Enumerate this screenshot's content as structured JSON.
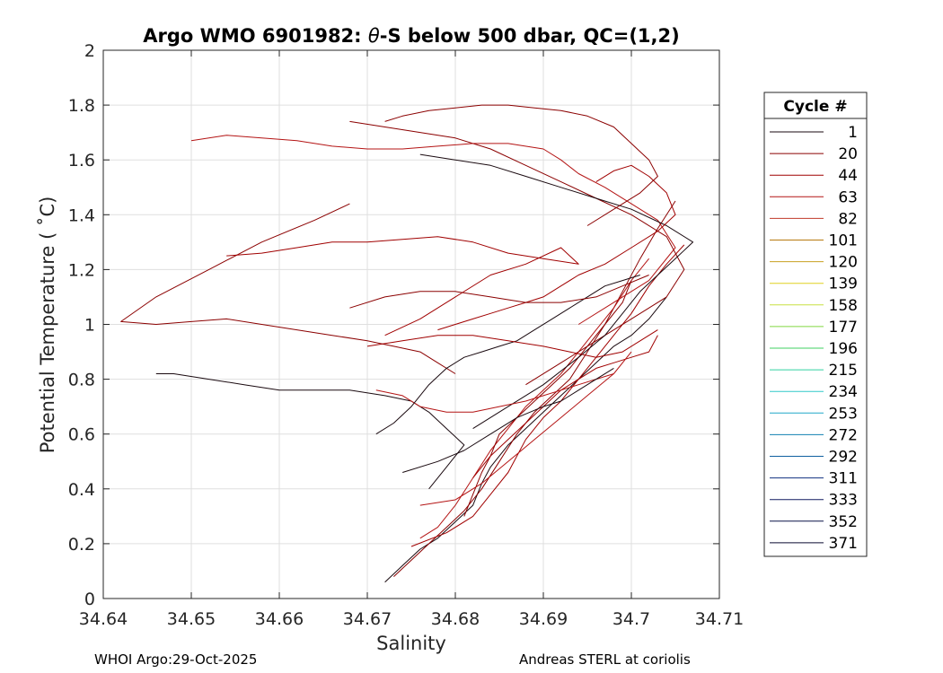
{
  "chart_data": {
    "type": "line",
    "title": "Argo WMO 6901982: θ-S below 500 dbar,  QC=(1,2)",
    "title_parts": {
      "lead": "Argo WMO 6901982: ",
      "symbol": "θ",
      "rest": "-S below 500 dbar,  QC=(1,2)"
    },
    "xlabel": "Salinity",
    "ylabel": "Potential Temperature ( ˚C)",
    "xlim": [
      34.64,
      34.71
    ],
    "ylim": [
      0,
      2
    ],
    "x_ticks": [
      34.64,
      34.65,
      34.66,
      34.67,
      34.68,
      34.69,
      34.7,
      34.71
    ],
    "x_tick_labels": [
      "34.64",
      "34.65",
      "34.66",
      "34.67",
      "34.68",
      "34.69",
      "34.7",
      "34.71"
    ],
    "y_ticks": [
      0,
      0.2,
      0.4,
      0.6,
      0.8,
      1,
      1.2,
      1.4,
      1.6,
      1.8,
      2
    ],
    "y_tick_labels": [
      "0",
      "0.2",
      "0.4",
      "0.6",
      "0.8",
      "1",
      "1.2",
      "1.4",
      "1.6",
      "1.8",
      "2"
    ],
    "grid": true,
    "legend": {
      "title": "Cycle #",
      "placement": "outside-right",
      "entries": [
        {
          "label": "1",
          "color": "#1a0a10"
        },
        {
          "label": "20",
          "color": "#8b0000"
        },
        {
          "label": "44",
          "color": "#a00000"
        },
        {
          "label": "63",
          "color": "#b41414"
        },
        {
          "label": "82",
          "color": "#c03a2a"
        },
        {
          "label": "101",
          "color": "#b87a10"
        },
        {
          "label": "120",
          "color": "#c8a020"
        },
        {
          "label": "139",
          "color": "#e0d020"
        },
        {
          "label": "158",
          "color": "#c8e040"
        },
        {
          "label": "177",
          "color": "#80d840"
        },
        {
          "label": "196",
          "color": "#40d060"
        },
        {
          "label": "215",
          "color": "#30d0a0"
        },
        {
          "label": "234",
          "color": "#30c8c8"
        },
        {
          "label": "253",
          "color": "#20a8c8"
        },
        {
          "label": "272",
          "color": "#1080b0"
        },
        {
          "label": "292",
          "color": "#1060a0"
        },
        {
          "label": "311",
          "color": "#103080"
        },
        {
          "label": "333",
          "color": "#101a60"
        },
        {
          "label": "352",
          "color": "#0a1448"
        },
        {
          "label": "371",
          "color": "#0a0a30"
        }
      ]
    },
    "series": [
      {
        "color": "#1a0a10",
        "x": [
          34.672,
          34.674,
          34.676,
          34.678,
          34.68,
          34.682,
          34.683,
          34.684,
          34.686,
          34.688,
          34.69,
          34.692,
          34.694,
          34.696,
          34.698,
          34.7,
          34.702,
          34.704
        ],
        "y": [
          0.06,
          0.12,
          0.18,
          0.22,
          0.28,
          0.34,
          0.42,
          0.48,
          0.56,
          0.62,
          0.68,
          0.74,
          0.8,
          0.86,
          0.92,
          0.96,
          1.02,
          1.1
        ]
      },
      {
        "color": "#8b0000",
        "x": [
          34.673,
          34.675,
          34.677,
          34.679,
          34.681,
          34.683,
          34.685,
          34.687,
          34.689,
          34.691,
          34.693,
          34.695,
          34.697,
          34.699,
          34.701,
          34.703,
          34.705
        ],
        "y": [
          0.08,
          0.14,
          0.2,
          0.26,
          0.32,
          0.4,
          0.5,
          0.6,
          0.68,
          0.74,
          0.8,
          0.9,
          1.0,
          1.12,
          1.24,
          1.35,
          1.45
        ]
      },
      {
        "color": "#a00000",
        "x": [
          34.675,
          34.679,
          34.682,
          34.684,
          34.686,
          34.688,
          34.69,
          34.692,
          34.694,
          34.696,
          34.698,
          34.7,
          34.702,
          34.704,
          34.706
        ],
        "y": [
          0.19,
          0.24,
          0.3,
          0.38,
          0.46,
          0.58,
          0.66,
          0.72,
          0.8,
          0.88,
          0.96,
          1.04,
          1.14,
          1.22,
          1.29
        ]
      },
      {
        "color": "#b41414",
        "x": [
          34.676,
          34.678,
          34.68,
          34.682,
          34.684,
          34.686,
          34.688,
          34.69,
          34.692,
          34.694,
          34.696,
          34.698,
          34.7,
          34.702
        ],
        "y": [
          0.22,
          0.26,
          0.34,
          0.44,
          0.54,
          0.62,
          0.7,
          0.76,
          0.82,
          0.9,
          0.98,
          1.06,
          1.16,
          1.24
        ]
      },
      {
        "color": "#8b0000",
        "x": [
          34.681,
          34.682,
          34.683,
          34.684,
          34.685,
          34.687,
          34.689,
          34.691,
          34.693,
          34.695,
          34.697,
          34.699,
          34.7
        ],
        "y": [
          0.3,
          0.38,
          0.46,
          0.52,
          0.6,
          0.66,
          0.72,
          0.78,
          0.84,
          0.92,
          1.0,
          1.08,
          1.16
        ]
      },
      {
        "color": "#a00000",
        "x": [
          34.682,
          34.684,
          34.686,
          34.688,
          34.69,
          34.692,
          34.694,
          34.696,
          34.698,
          34.7,
          34.702,
          34.703
        ],
        "y": [
          0.44,
          0.52,
          0.58,
          0.64,
          0.7,
          0.76,
          0.8,
          0.84,
          0.86,
          0.88,
          0.9,
          0.96
        ]
      },
      {
        "color": "#1a0a10",
        "x": [
          34.677,
          34.679,
          34.681,
          34.679,
          34.677,
          34.675,
          34.672,
          34.668,
          34.664,
          34.66,
          34.656,
          34.652,
          34.648,
          34.646
        ],
        "y": [
          0.4,
          0.48,
          0.56,
          0.62,
          0.68,
          0.72,
          0.74,
          0.76,
          0.76,
          0.76,
          0.78,
          0.8,
          0.82,
          0.82
        ]
      },
      {
        "color": "#8b0000",
        "x": [
          34.68,
          34.678,
          34.676,
          34.673,
          34.67,
          34.666,
          34.662,
          34.658,
          34.654,
          34.65,
          34.646,
          34.642,
          34.646,
          34.652,
          34.658,
          34.664,
          34.668
        ],
        "y": [
          0.82,
          0.86,
          0.9,
          0.92,
          0.94,
          0.96,
          0.98,
          1.0,
          1.02,
          1.01,
          1.0,
          1.01,
          1.1,
          1.2,
          1.3,
          1.38,
          1.44
        ]
      },
      {
        "color": "#a00000",
        "x": [
          34.672,
          34.676,
          34.68,
          34.684,
          34.688,
          34.692,
          34.694,
          34.69,
          34.686,
          34.682,
          34.678,
          34.674,
          34.67,
          34.666,
          34.662,
          34.658,
          34.654
        ],
        "y": [
          0.96,
          1.02,
          1.1,
          1.18,
          1.22,
          1.28,
          1.22,
          1.24,
          1.26,
          1.3,
          1.32,
          1.31,
          1.3,
          1.3,
          1.28,
          1.26,
          1.25
        ]
      },
      {
        "color": "#8b0000",
        "x": [
          34.688,
          34.692,
          34.696,
          34.7,
          34.704,
          34.706,
          34.704,
          34.7,
          34.696,
          34.692,
          34.688,
          34.684,
          34.68,
          34.676,
          34.672,
          34.668
        ],
        "y": [
          0.78,
          0.86,
          0.94,
          1.02,
          1.1,
          1.2,
          1.32,
          1.4,
          1.46,
          1.52,
          1.58,
          1.64,
          1.68,
          1.7,
          1.72,
          1.74
        ]
      },
      {
        "color": "#b41414",
        "x": [
          34.694,
          34.698,
          34.702,
          34.705,
          34.703,
          34.7,
          34.697,
          34.694,
          34.692,
          34.69,
          34.686,
          34.682,
          34.678,
          34.674,
          34.67,
          34.666,
          34.662,
          34.658,
          34.654,
          34.65
        ],
        "y": [
          1.0,
          1.08,
          1.16,
          1.28,
          1.38,
          1.44,
          1.5,
          1.55,
          1.6,
          1.64,
          1.66,
          1.66,
          1.65,
          1.64,
          1.64,
          1.65,
          1.67,
          1.68,
          1.69,
          1.67
        ]
      },
      {
        "color": "#1a0a10",
        "x": [
          34.682,
          34.686,
          34.69,
          34.694,
          34.697,
          34.699,
          34.701,
          34.703,
          34.705,
          34.707,
          34.704,
          34.7,
          34.696,
          34.692,
          34.688,
          34.684,
          34.68,
          34.676
        ],
        "y": [
          0.62,
          0.7,
          0.78,
          0.88,
          0.96,
          1.04,
          1.12,
          1.18,
          1.24,
          1.3,
          1.36,
          1.42,
          1.46,
          1.5,
          1.54,
          1.58,
          1.6,
          1.62
        ]
      },
      {
        "color": "#a00000",
        "x": [
          34.696,
          34.698,
          34.7,
          34.702,
          34.704,
          34.705,
          34.703,
          34.7,
          34.697,
          34.694,
          34.692,
          34.69,
          34.688,
          34.686,
          34.684,
          34.682,
          34.68,
          34.678
        ],
        "y": [
          1.52,
          1.56,
          1.58,
          1.54,
          1.48,
          1.4,
          1.34,
          1.28,
          1.22,
          1.18,
          1.14,
          1.1,
          1.08,
          1.06,
          1.04,
          1.02,
          1.0,
          0.98
        ]
      },
      {
        "color": "#8b0000",
        "x": [
          34.672,
          34.674,
          34.677,
          34.68,
          34.683,
          34.686,
          34.689,
          34.692,
          34.695,
          34.698,
          34.7,
          34.702,
          34.703,
          34.701,
          34.698,
          34.695
        ],
        "y": [
          1.74,
          1.76,
          1.78,
          1.79,
          1.8,
          1.8,
          1.79,
          1.78,
          1.76,
          1.72,
          1.66,
          1.6,
          1.54,
          1.48,
          1.42,
          1.36
        ]
      },
      {
        "color": "#b41414",
        "x": [
          34.671,
          34.674,
          34.676,
          34.679,
          34.682,
          34.685,
          34.688,
          34.69,
          34.692,
          34.694,
          34.696,
          34.698
        ],
        "y": [
          0.76,
          0.74,
          0.7,
          0.68,
          0.68,
          0.7,
          0.72,
          0.74,
          0.76,
          0.78,
          0.8,
          0.82
        ]
      },
      {
        "color": "#1a0a10",
        "x": [
          34.671,
          34.673,
          34.675,
          34.677,
          34.679,
          34.681,
          34.683,
          34.685,
          34.687,
          34.689,
          34.691,
          34.693,
          34.695,
          34.697,
          34.699,
          34.701
        ],
        "y": [
          0.6,
          0.64,
          0.7,
          0.78,
          0.84,
          0.88,
          0.9,
          0.92,
          0.94,
          0.98,
          1.02,
          1.06,
          1.1,
          1.14,
          1.16,
          1.18
        ]
      },
      {
        "color": "#a00000",
        "x": [
          34.67,
          34.674,
          34.678,
          34.682,
          34.686,
          34.69,
          34.693,
          34.696,
          34.699,
          34.701,
          34.703
        ],
        "y": [
          0.92,
          0.94,
          0.96,
          0.96,
          0.94,
          0.92,
          0.9,
          0.88,
          0.9,
          0.94,
          0.98
        ]
      },
      {
        "color": "#8b0000",
        "x": [
          34.668,
          34.672,
          34.676,
          34.68,
          34.684,
          34.688,
          34.692,
          34.696,
          34.699,
          34.702
        ],
        "y": [
          1.06,
          1.1,
          1.12,
          1.12,
          1.1,
          1.08,
          1.08,
          1.1,
          1.14,
          1.18
        ]
      },
      {
        "color": "#1a0a10",
        "x": [
          34.674,
          34.678,
          34.681,
          34.684,
          34.687,
          34.69,
          34.692,
          34.694,
          34.696,
          34.698
        ],
        "y": [
          0.46,
          0.5,
          0.54,
          0.6,
          0.66,
          0.7,
          0.72,
          0.76,
          0.8,
          0.84
        ]
      },
      {
        "color": "#b41414",
        "x": [
          34.676,
          34.68,
          34.683,
          34.686,
          34.689,
          34.692,
          34.695,
          34.698,
          34.7
        ],
        "y": [
          0.34,
          0.36,
          0.42,
          0.5,
          0.58,
          0.66,
          0.74,
          0.82,
          0.9
        ]
      }
    ]
  },
  "footer": {
    "left": "WHOI Argo:29-Oct-2025",
    "right": "Andreas STERL at coriolis"
  }
}
